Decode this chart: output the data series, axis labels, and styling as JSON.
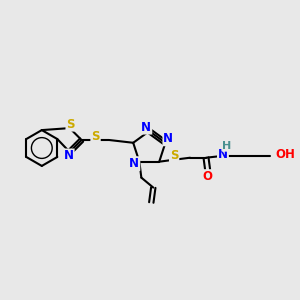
{
  "background_color": "#e8e8e8",
  "atom_colors": {
    "C": "#000000",
    "N": "#0000ff",
    "S": "#ccaa00",
    "O": "#ff0000",
    "H": "#4a9090"
  },
  "bond_color": "#000000",
  "bond_width": 1.5,
  "figsize": [
    3.0,
    3.0
  ],
  "dpi": 100
}
